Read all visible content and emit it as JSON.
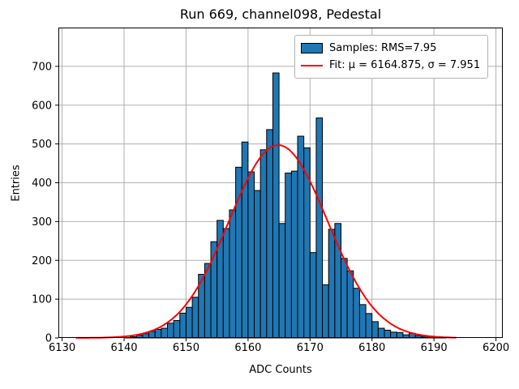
{
  "chart_data": {
    "type": "bar",
    "subtype": "histogram-with-gaussian-fit",
    "title": "Run 669, channel098, Pedestal",
    "xlabel": "ADC Counts",
    "ylabel": "Entries",
    "xlim": [
      6129.4,
      6201.1
    ],
    "ylim": [
      0,
      800
    ],
    "xticks": [
      6130,
      6140,
      6150,
      6160,
      6170,
      6180,
      6190,
      6200
    ],
    "yticks": [
      0,
      100,
      200,
      300,
      400,
      500,
      600,
      700
    ],
    "grid": true,
    "grid_color": "#b0b0b0",
    "bar_color": "#1f77b4",
    "bar_edge_color": "#000000",
    "bin_width": 1,
    "bin_left_edges": [
      6140,
      6141,
      6142,
      6143,
      6144,
      6145,
      6146,
      6147,
      6148,
      6149,
      6150,
      6151,
      6152,
      6153,
      6154,
      6155,
      6156,
      6157,
      6158,
      6159,
      6160,
      6161,
      6162,
      6163,
      6164,
      6165,
      6166,
      6167,
      6168,
      6169,
      6170,
      6171,
      6172,
      6173,
      6174,
      6175,
      6176,
      6177,
      6178,
      6179,
      6180,
      6181,
      6182,
      6183,
      6184,
      6185,
      6186,
      6187,
      6188,
      6189,
      6190,
      6191
    ],
    "counts": [
      1,
      3,
      7,
      11,
      17,
      22,
      25,
      38,
      45,
      64,
      79,
      105,
      164,
      192,
      248,
      303,
      282,
      330,
      440,
      505,
      428,
      380,
      485,
      537,
      683,
      295,
      425,
      430,
      520,
      490,
      220,
      567,
      137,
      280,
      295,
      205,
      173,
      128,
      86,
      63,
      42,
      25,
      20,
      15,
      14,
      8,
      12,
      6,
      4,
      2,
      2,
      1
    ],
    "rms": 7.95,
    "fit": {
      "mu": 6164.875,
      "sigma": 7.951,
      "amplitude": 497,
      "color": "#ff0000",
      "x_start": 6132.3,
      "x_end": 6193.5
    },
    "legend": {
      "position": "upper-right",
      "items": [
        {
          "swatch": "patch",
          "label": "Samples: RMS=7.95"
        },
        {
          "swatch": "line",
          "label": "Fit: μ = 6164.875, σ = 7.951"
        }
      ]
    }
  }
}
